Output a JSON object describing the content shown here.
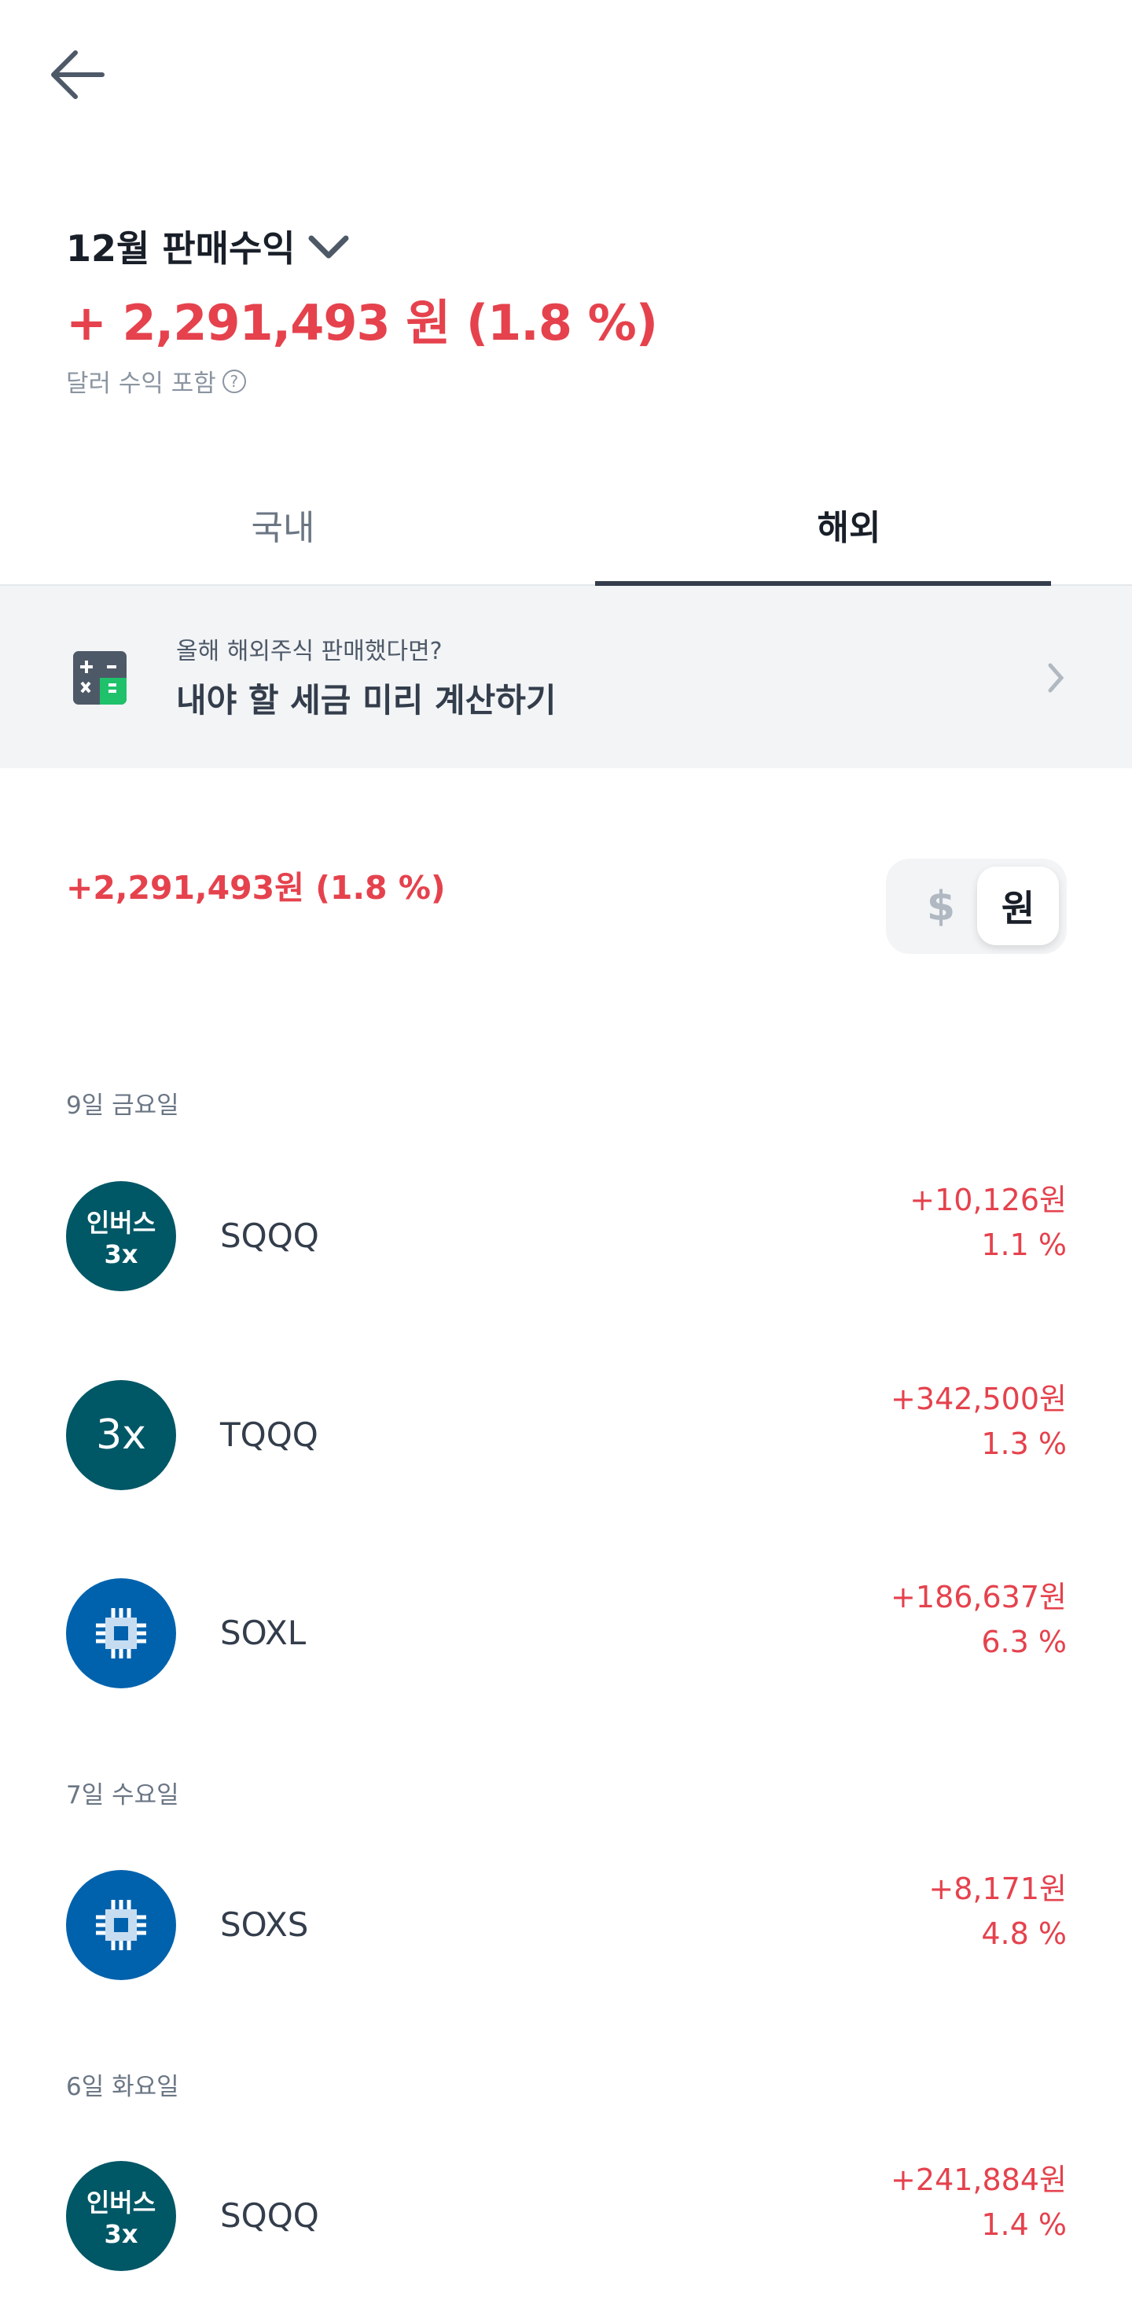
{
  "header": {
    "title": "12월 판매수익",
    "total": "+ 2,291,493 원 (1.8 %)",
    "note": "달러 수익 포함",
    "help_icon": "?"
  },
  "tabs": [
    {
      "label": "국내",
      "active": false
    },
    {
      "label": "해외",
      "active": true
    }
  ],
  "banner": {
    "subtitle": "올해 해외주식 판매했다면?",
    "title": "내야 할 세금 미리 계산하기"
  },
  "summary": {
    "amount": "+2,291,493원 (1.8 %)",
    "currency_options": [
      "$",
      "원"
    ],
    "selected_currency": "원"
  },
  "colors": {
    "profit": "#e5424d",
    "logo_teal": "#005766",
    "logo_blue": "#0062ad",
    "banner_bg": "#f2f4f6"
  },
  "groups": [
    {
      "date": "9일 금요일",
      "items": [
        {
          "ticker": "SQQQ",
          "logo_line1": "인버스",
          "logo_line2": "3x",
          "amount": "+10,126원",
          "pct": "1.1 %"
        },
        {
          "ticker": "TQQQ",
          "logo_line1": "3x",
          "amount": "+342,500원",
          "pct": "1.3 %"
        },
        {
          "ticker": "SOXL",
          "logo": "chip-icon",
          "amount": "+186,637원",
          "pct": "6.3 %"
        }
      ]
    },
    {
      "date": "7일 수요일",
      "items": [
        {
          "ticker": "SOXS",
          "logo": "chip-icon",
          "amount": "+8,171원",
          "pct": "4.8 %"
        }
      ]
    },
    {
      "date": "6일 화요일",
      "items": [
        {
          "ticker": "SQQQ",
          "logo_line1": "인버스",
          "logo_line2": "3x",
          "amount": "+241,884원",
          "pct": "1.4 %"
        }
      ]
    }
  ]
}
